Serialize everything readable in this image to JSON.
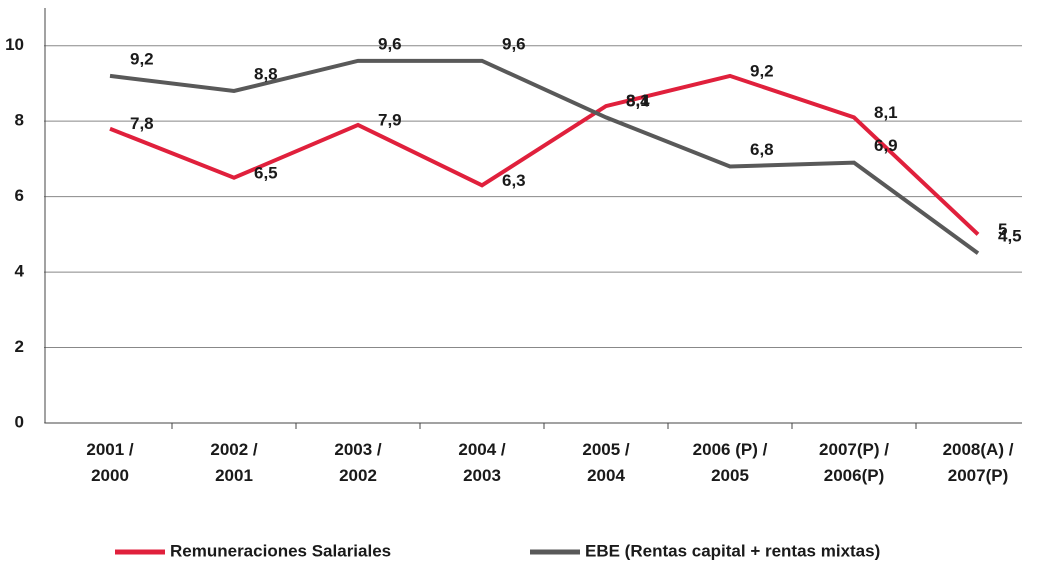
{
  "chart_data": {
    "type": "line",
    "categories": [
      "2001 /\n2000",
      "2002 /\n2001",
      "2003  /\n2002",
      "2004 /\n2003",
      "2005 /\n2004",
      "2006 (P) /\n2005",
      "2007(P) /\n2006(P)",
      "2008(A) /\n2007(P)"
    ],
    "series": [
      {
        "name": "Remuneraciones Salariales",
        "color": "#e0203c",
        "values": [
          7.8,
          6.5,
          7.9,
          6.3,
          8.4,
          9.2,
          8.1,
          5
        ],
        "value_labels": [
          "7,8",
          "6,5",
          "7,9",
          "6,3",
          "8,4",
          "9,2",
          "8,1",
          "5"
        ]
      },
      {
        "name": "EBE (Rentas capital + rentas mixtas)",
        "color": "#595959",
        "values": [
          9.2,
          8.8,
          9.6,
          9.6,
          8.1,
          6.8,
          6.9,
          4.5
        ],
        "value_labels": [
          "9,2",
          "8,8",
          "9,6",
          "9,6",
          "8,1",
          "6,8",
          "6,9",
          "4,5"
        ]
      }
    ],
    "ylim": [
      0,
      11
    ],
    "yticks": [
      0,
      2,
      4,
      6,
      8,
      10
    ],
    "grid": true,
    "legend": "bottom"
  }
}
